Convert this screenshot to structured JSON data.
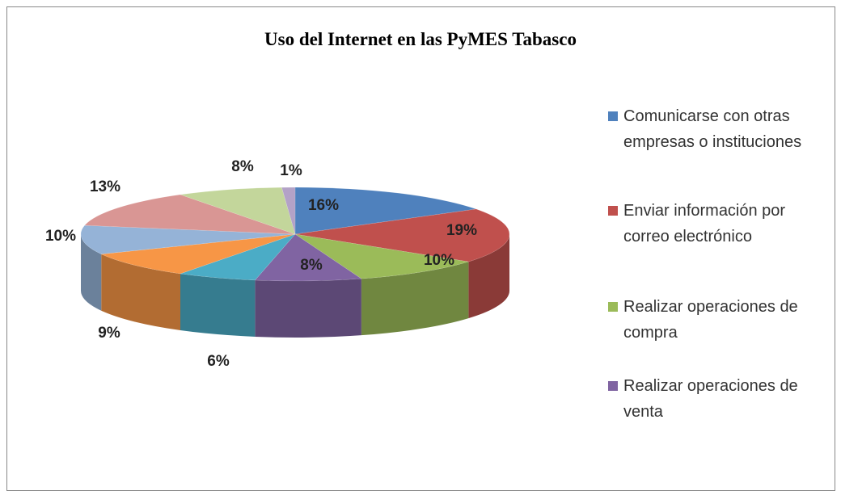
{
  "chart_data": {
    "type": "pie3d",
    "title": "Uso del Internet en las PyMES  Tabasco",
    "categories": [
      "Comunicarse con otras empresas o instituciones",
      "Enviar información por correo electrónico",
      "Realizar operaciones de compra",
      "Realizar operaciones de venta",
      null,
      null,
      null,
      null,
      null,
      null
    ],
    "values": [
      16,
      19,
      10,
      8,
      6,
      9,
      10,
      13,
      8,
      1
    ],
    "value_labels": [
      "16%",
      "19%",
      "10%",
      "8%",
      "6%",
      "9%",
      "10%",
      "13%",
      "8%",
      "1%"
    ],
    "colors": [
      "#4f81bd",
      "#c0504d",
      "#9bbb59",
      "#8064a2",
      "#4bacc6",
      "#f79646",
      "#95b3d7",
      "#d99694",
      "#c3d69b",
      "#b3a2c7"
    ],
    "legend": "right"
  }
}
